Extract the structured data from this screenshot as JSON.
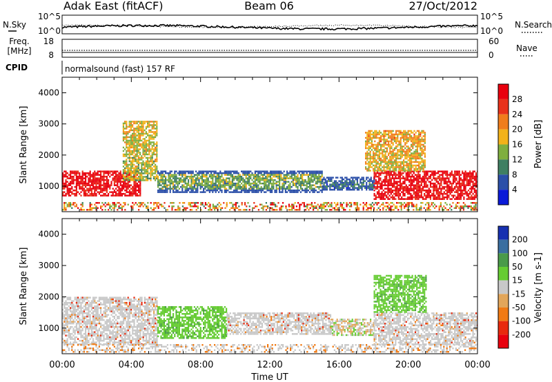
{
  "header": {
    "radar": "Adak East (fitACF)",
    "beam": "Beam 06",
    "date": "27/Oct/2012"
  },
  "noise_panel": {
    "left_label": "N.Sky",
    "right_label": "N.Search",
    "left_ticks": [
      "10^5",
      "10^0"
    ],
    "right_ticks": [
      "10^5",
      "10^0"
    ]
  },
  "freq_panel": {
    "left_label_1": "Freq.",
    "left_label_2": "[MHz]",
    "right_label": "Nave",
    "left_ticks": [
      "18",
      "8"
    ],
    "right_ticks": [
      "60",
      "0"
    ]
  },
  "cpid": {
    "label": "CPID",
    "text": "normalsound (fast) 157 RF"
  },
  "x_axis": {
    "label": "Time UT",
    "ticks": [
      "00:00",
      "04:00",
      "08:00",
      "12:00",
      "16:00",
      "20:00",
      "00:00"
    ]
  },
  "chart_data": [
    {
      "type": "heatmap",
      "title": "Power",
      "ylabel": "Slant Range [km]",
      "xlabel": "Time UT",
      "ylim": [
        180,
        4500
      ],
      "xlim": [
        0,
        24
      ],
      "y_ticks": [
        "1000",
        "2000",
        "3000",
        "4000"
      ],
      "y_tick_values": [
        1000,
        2000,
        3000,
        4000
      ],
      "colorbar": {
        "label": "Power [dB]",
        "ticks": [
          "4",
          "8",
          "12",
          "16",
          "20",
          "24",
          "28"
        ],
        "tick_values": [
          4,
          8,
          12,
          16,
          20,
          24,
          28
        ],
        "range": [
          0,
          32
        ],
        "colors": [
          "#0b1ad8",
          "#2b4fa8",
          "#3f7f62",
          "#7fae3f",
          "#f2b21a",
          "#f07d1c",
          "#e8321a",
          "#e8000e"
        ]
      },
      "regions": [
        {
          "t0": 0.0,
          "t1": 4.5,
          "r0": 700,
          "r1": 1500,
          "level": 30
        },
        {
          "t0": 3.5,
          "t1": 5.5,
          "r0": 1200,
          "r1": 3100,
          "level": 18
        },
        {
          "t0": 5.5,
          "t1": 15.0,
          "r0": 800,
          "r1": 1500,
          "level": 14
        },
        {
          "t0": 15.0,
          "t1": 18.0,
          "r0": 900,
          "r1": 1300,
          "level": 10
        },
        {
          "t0": 18.0,
          "t1": 24.0,
          "r0": 600,
          "r1": 1500,
          "level": 30
        },
        {
          "t0": 17.5,
          "t1": 21.0,
          "r0": 1500,
          "r1": 2800,
          "level": 20
        }
      ]
    },
    {
      "type": "heatmap",
      "title": "Velocity",
      "ylabel": "Slant Range [km]",
      "xlabel": "Time UT",
      "ylim": [
        180,
        4500
      ],
      "xlim": [
        0,
        24
      ],
      "y_ticks": [
        "1000",
        "2000",
        "3000",
        "4000"
      ],
      "y_tick_values": [
        1000,
        2000,
        3000,
        4000
      ],
      "colorbar": {
        "label": "Velocity [m s-1]",
        "ticks": [
          "200",
          "100",
          "50",
          "15",
          "-15",
          "-50",
          "-100",
          "-200"
        ],
        "colors": [
          "#1730b0",
          "#3a6ea0",
          "#4a9a4a",
          "#66cc33",
          "#c8c8c8",
          "#e2a65a",
          "#f07a14",
          "#e82a0e",
          "#e8000e"
        ]
      },
      "regions": [
        {
          "t0": 0.0,
          "t1": 5.5,
          "r0": 500,
          "r1": 2000,
          "class": "ground"
        },
        {
          "t0": 5.5,
          "t1": 9.5,
          "r0": 700,
          "r1": 1700,
          "class": "positive"
        },
        {
          "t0": 9.5,
          "t1": 15.5,
          "r0": 800,
          "r1": 1500,
          "class": "ground"
        },
        {
          "t0": 15.5,
          "t1": 18.0,
          "r0": 800,
          "r1": 1300,
          "class": "mixed"
        },
        {
          "t0": 18.0,
          "t1": 24.0,
          "r0": 500,
          "r1": 1500,
          "class": "ground"
        },
        {
          "t0": 18.0,
          "t1": 21.0,
          "r0": 1500,
          "r1": 2700,
          "class": "positive"
        }
      ]
    }
  ]
}
